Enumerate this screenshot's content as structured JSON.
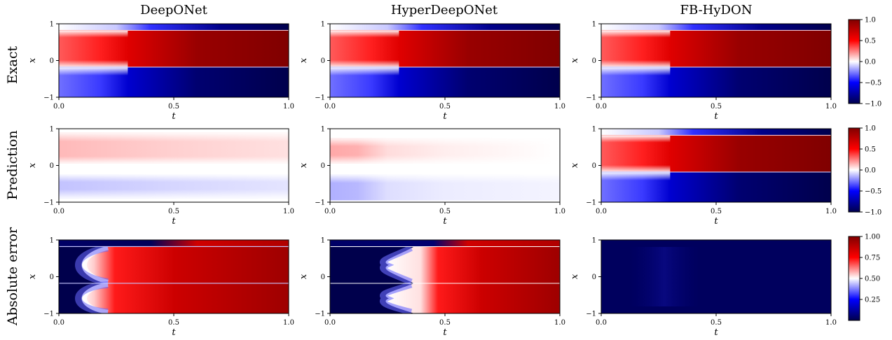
{
  "chart_data": {
    "type": "heatmap",
    "columns": [
      "DeepONet",
      "HyperDeepONet",
      "FB-HyDON"
    ],
    "rows": [
      "Exact",
      "Prediction",
      "Absolute error"
    ],
    "xlabel": "t",
    "ylabel": "x",
    "xlim": [
      0.0,
      1.0
    ],
    "ylim": [
      -1,
      1
    ],
    "x_ticks": [
      "0.0",
      "0.5",
      "1.0"
    ],
    "y_ticks": [
      "1",
      "0",
      "−1"
    ],
    "colorbars": [
      {
        "row": "Exact",
        "range": [
          -1.0,
          1.0
        ],
        "ticks": [
          "1.0",
          "0.5",
          "0.0",
          "−0.5",
          "−1.0"
        ]
      },
      {
        "row": "Prediction",
        "range": [
          -1.0,
          1.0
        ],
        "ticks": [
          "1.0",
          "0.5",
          "0.0",
          "−0.5",
          "−1.0"
        ]
      },
      {
        "row": "Absolute error",
        "range": [
          0.0,
          1.0
        ],
        "ticks": [
          "1.00",
          "0.75",
          "0.50",
          "0.25"
        ]
      }
    ],
    "colormap": "seismic",
    "colormap_stops": [
      "#00004c",
      "#0000ff",
      "#ffffff",
      "#ff0000",
      "#800000"
    ],
    "panel_data": {
      "shock_positions_x": [
        0.82,
        -0.18
      ],
      "description_values": {
        "exact_peak": 1.0,
        "exact_trough": -1.0,
        "deeponet_pred_amplitude": 0.3,
        "hyperdeeponet_pred_amplitude": 0.35,
        "fbhydon_pred_amplitude": 1.0
      }
    }
  }
}
